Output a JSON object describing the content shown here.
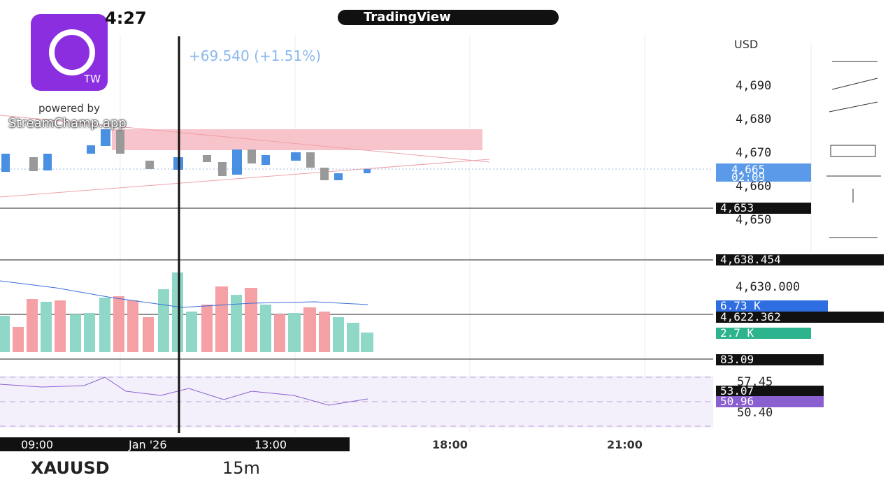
{
  "status_bar": {
    "time": "4:27"
  },
  "header": {
    "app": "TradingView"
  },
  "watermark": {
    "badge": "TW",
    "powered": "powered by",
    "brand": "StreamChamp.app"
  },
  "quote": {
    "change": "+69.540 (+1.51%)"
  },
  "price_axis": {
    "currency": "USD",
    "labels": [
      "4,690",
      "4,680",
      "4,670",
      "4,660",
      "4,650",
      "4,630.000"
    ],
    "last_price": "4,665",
    "countdown": "02:09",
    "line1": "4,653",
    "line2": "4,638.454",
    "line3": "4,622.362",
    "volume_ma": "6.73 K",
    "volume": "2.7 K",
    "rsi_top": "83.09",
    "rsi_upper": "57.45",
    "rsi_ma": "53.07",
    "rsi": "50.96",
    "rsi_lower": "50.40"
  },
  "time_axis": [
    "09:00",
    "Jan '26",
    "13:00",
    "18:00",
    "21:00"
  ],
  "toolbar": {
    "symbol": "XAUUSD",
    "interval": "15m"
  }
}
